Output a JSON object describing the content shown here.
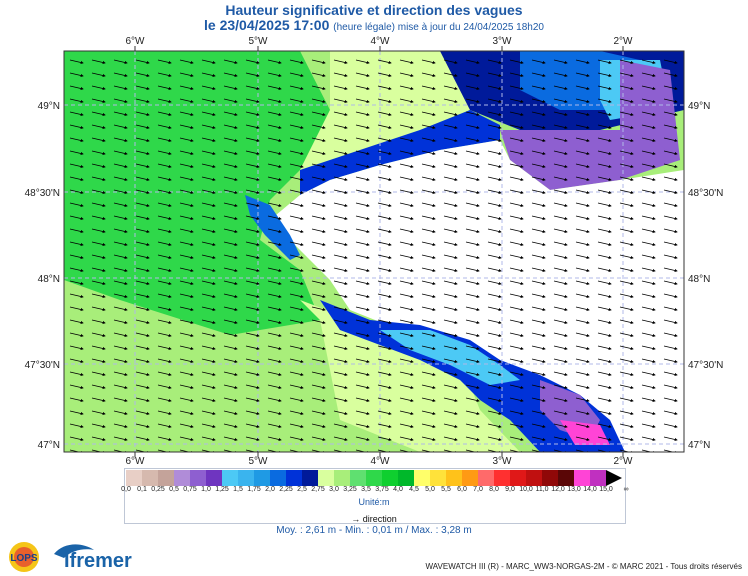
{
  "header": {
    "title": "Hauteur significative et direction des vagues",
    "date_time": "le 23/04/2025 17:00",
    "update_note": "(heure légale) mise à jour du 24/04/2025 18h20"
  },
  "map": {
    "lon_labels": [
      "6°W",
      "5°W",
      "4°W",
      "3°W",
      "2°W"
    ],
    "lat_labels": [
      "49°N",
      "48°30'N",
      "48°N",
      "47°30'N",
      "47°N"
    ],
    "land_color": "#ffffff",
    "grid_color": "#b0b8e8"
  },
  "legend": {
    "ticks": [
      "0,0",
      "0,1",
      "0,25",
      "0,5",
      "0,75",
      "1,0",
      "1,25",
      "1,5",
      "1,75",
      "2,0",
      "2,25",
      "2,5",
      "2,75",
      "3,0",
      "3,25",
      "3,5",
      "3,75",
      "4,0",
      "4,5",
      "5,0",
      "5,5",
      "6,0",
      "7,0",
      "8,0",
      "9,0",
      "10,0",
      "11,0",
      "12,0",
      "13,0",
      "14,0",
      "15,0",
      "∞"
    ],
    "colors": [
      "#e8cfc6",
      "#d6b9ae",
      "#c4a39a",
      "#b08cd8",
      "#8e5fd0",
      "#6f35c0",
      "#4cc9f5",
      "#3ab4ee",
      "#1f9ae4",
      "#0a6be0",
      "#0032d8",
      "#001a9a",
      "#d9ff9e",
      "#a8ee7a",
      "#5fe070",
      "#2fd84a",
      "#0fcf2f",
      "#00b82a",
      "#ffff6a",
      "#ffe23a",
      "#ffc21a",
      "#ff9a14",
      "#ff6a6a",
      "#ff3030",
      "#e01818",
      "#c01010",
      "#900808",
      "#5a0606",
      "#ff44d6",
      "#c030c0",
      "#000000"
    ],
    "unit": "Unité:m",
    "direction_label": "direction"
  },
  "stats": {
    "text": "Moy. : 2,61 m   -   Min. : 0,01 m / Max. : 3,28 m"
  },
  "footer": {
    "logo_lops": "LOPS",
    "logo_ifremer": "Ifremer",
    "copyright": "WAVEWATCH III (R) - MARC_WW3-NORGAS-2M - © MARC 2021 - Tous droits réservés"
  }
}
